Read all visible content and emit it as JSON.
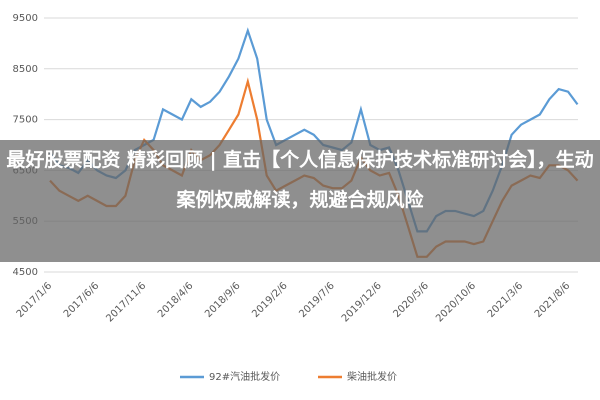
{
  "chart_data": {
    "type": "line",
    "categories": [
      "2017/1/6",
      null,
      null,
      null,
      null,
      "2017/6/6",
      null,
      null,
      null,
      null,
      "2017/11/6",
      null,
      null,
      null,
      null,
      "2018/4/6",
      null,
      null,
      null,
      null,
      "2018/9/6",
      null,
      null,
      null,
      null,
      "2019/2/6",
      null,
      null,
      null,
      null,
      "2019/7/6",
      null,
      null,
      null,
      null,
      "2019/12/6",
      null,
      null,
      null,
      null,
      "2020/5/6",
      null,
      null,
      null,
      null,
      "2020/10/6",
      null,
      null,
      null,
      null,
      "2021/3/6",
      null,
      null,
      null,
      null,
      "2021/8/6",
      null
    ],
    "series": [
      {
        "name": "92#汽油批发价",
        "color": "#5b9bd5",
        "values": [
          6850,
          6600,
          6550,
          6450,
          6700,
          6500,
          6400,
          6350,
          6500,
          6900,
          7000,
          7100,
          7700,
          7600,
          7500,
          7900,
          7750,
          7850,
          8050,
          8350,
          8700,
          9250,
          8700,
          7500,
          7000,
          7100,
          7200,
          7300,
          7200,
          7000,
          6950,
          6900,
          7050,
          7700,
          7000,
          6900,
          6950,
          6500,
          5900,
          5300,
          5300,
          5600,
          5700,
          5700,
          5650,
          5600,
          5700,
          6100,
          6600,
          7200,
          7400,
          7500,
          7600,
          7900,
          8100,
          8050,
          7800
        ]
      },
      {
        "name": "柴油批发价",
        "color": "#ed7d31",
        "values": [
          6300,
          6100,
          6000,
          5900,
          6000,
          5900,
          5800,
          5800,
          6000,
          6700,
          7100,
          6900,
          6600,
          6500,
          6400,
          6900,
          6700,
          6800,
          7000,
          7300,
          7600,
          8250,
          7500,
          6400,
          6100,
          6200,
          6300,
          6400,
          6350,
          6200,
          6150,
          6150,
          6300,
          6750,
          6500,
          6400,
          6450,
          6000,
          5400,
          4800,
          4800,
          5000,
          5100,
          5100,
          5100,
          5050,
          5100,
          5500,
          5900,
          6200,
          6300,
          6400,
          6350,
          6600,
          6600,
          6500,
          6300
        ]
      }
    ],
    "ylim": [
      4500,
      9500
    ],
    "yticks": [
      4500,
      5500,
      6500,
      7500,
      8500,
      9500
    ],
    "grid": true,
    "legend": "bottom"
  },
  "overlay": {
    "text": "最好股票配资 精彩回顾 | 直击【个人信息保护技术标准研讨会】，生动案例权威解读，规避合规风险"
  }
}
